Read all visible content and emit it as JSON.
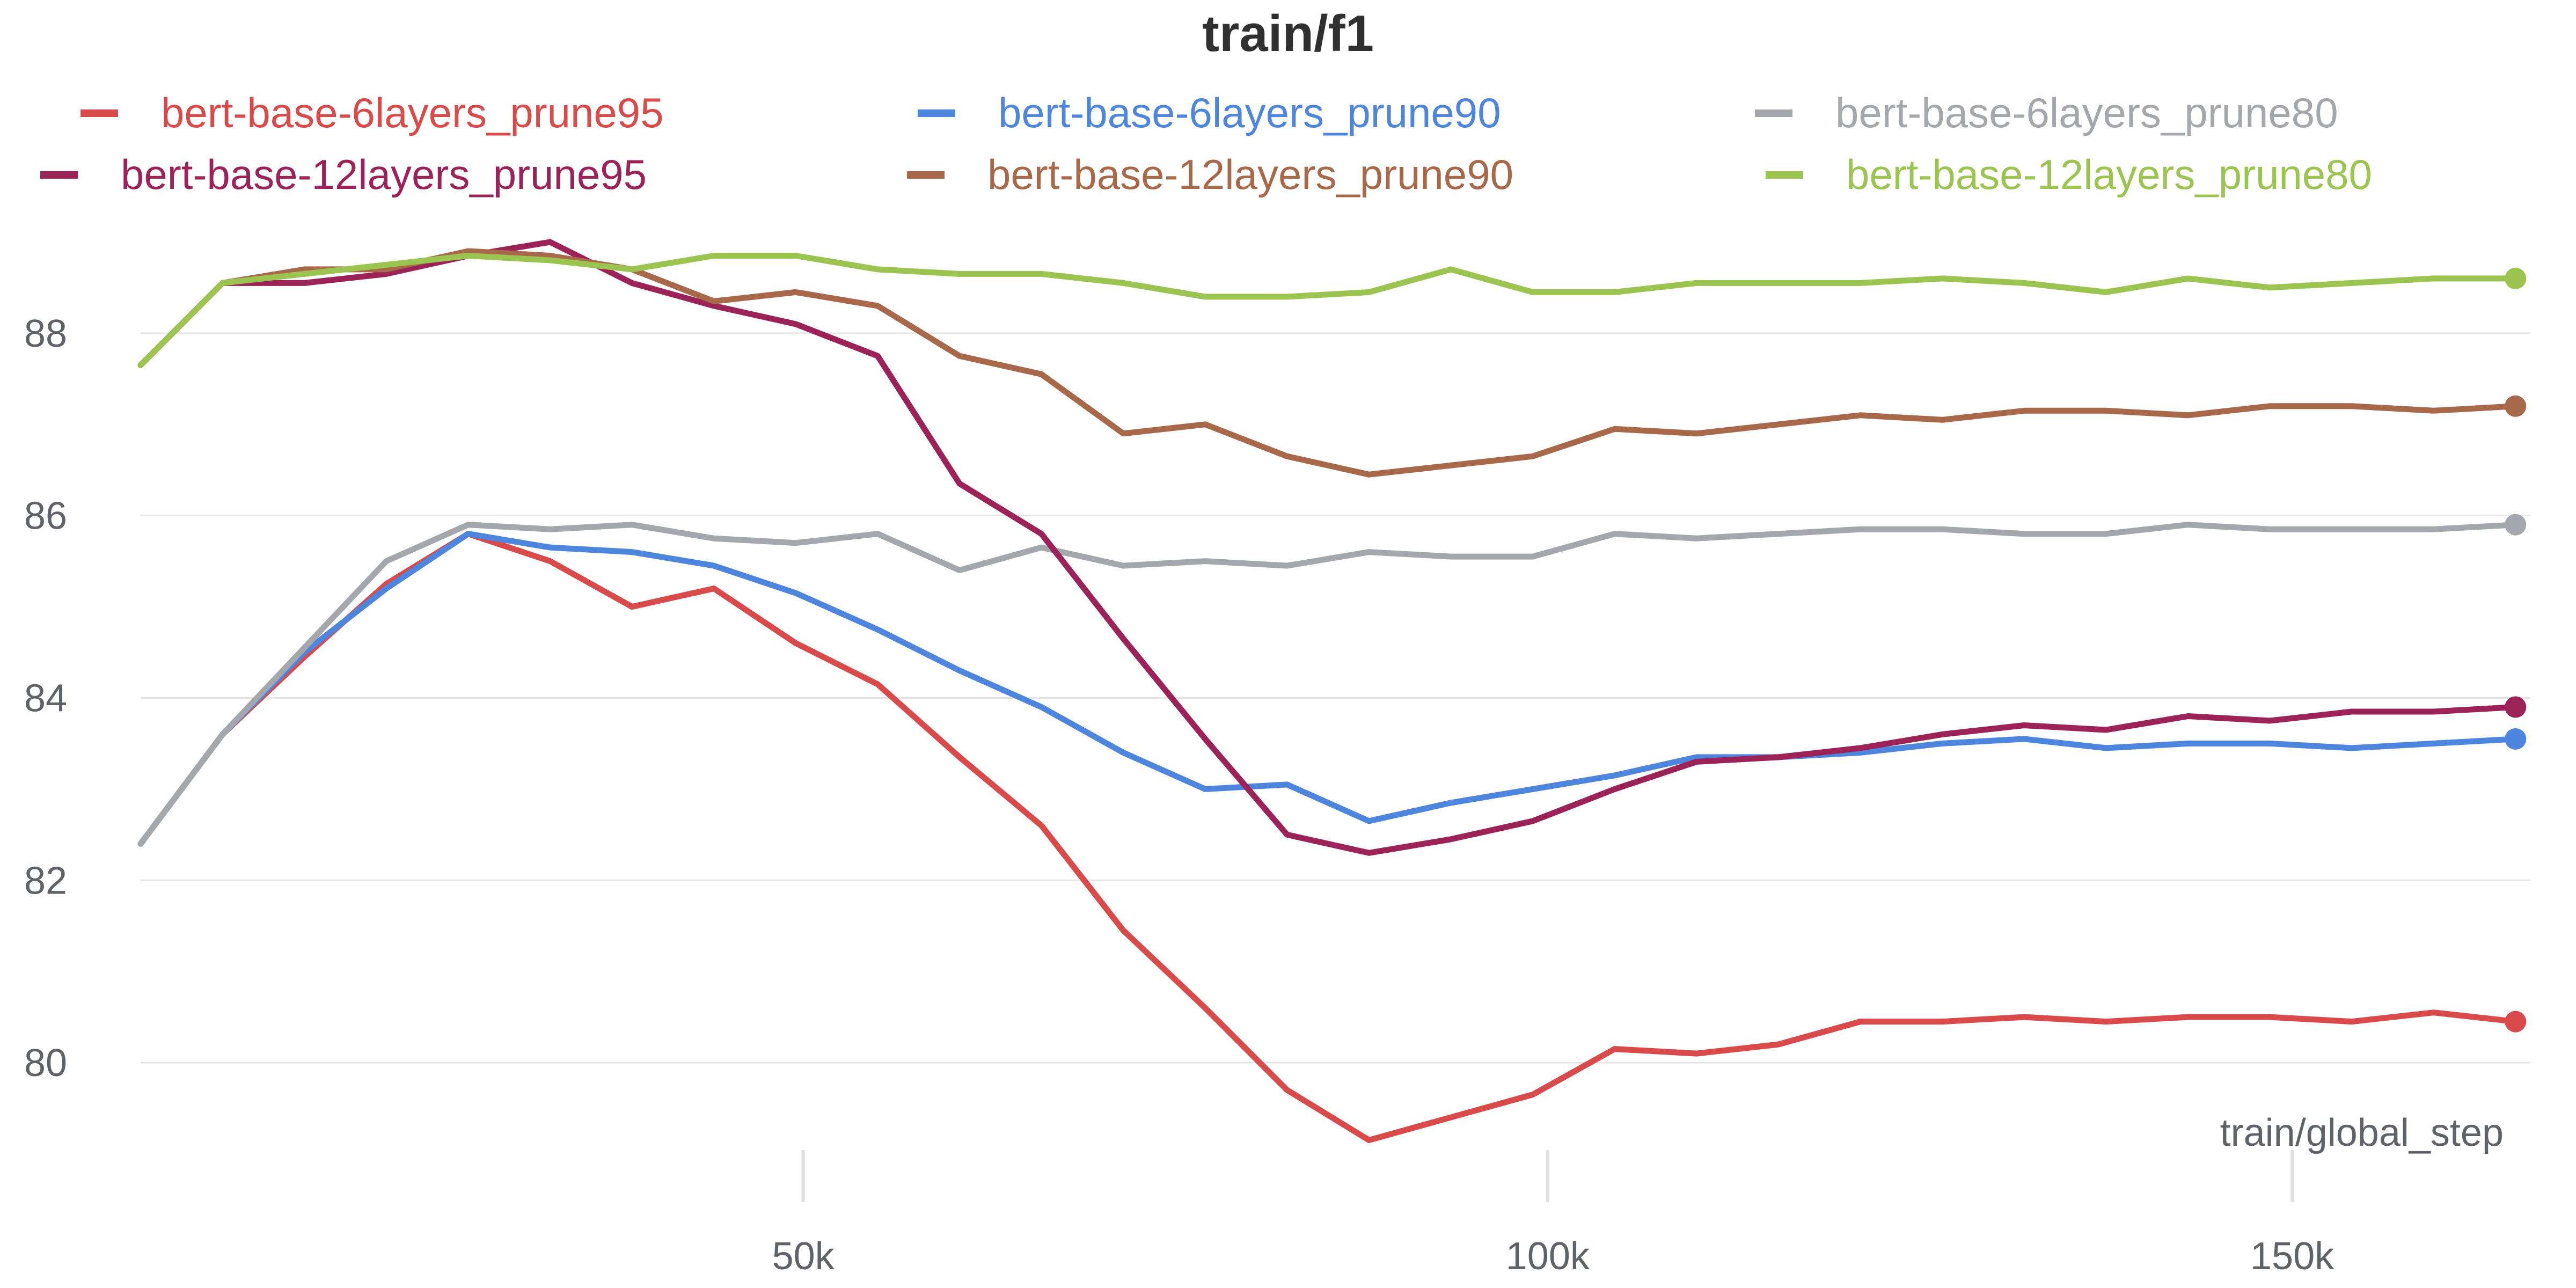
{
  "chart_data": {
    "type": "line",
    "title": "train/f1",
    "xlabel": "train/global_step",
    "ylabel": "",
    "xlim": [
      5500,
      166000
    ],
    "ylim": [
      79,
      89.3
    ],
    "x_ticks": [
      {
        "value": 50000,
        "label": "50k"
      },
      {
        "value": 100000,
        "label": "100k"
      },
      {
        "value": 150000,
        "label": "150k"
      }
    ],
    "y_ticks": [
      {
        "value": 80,
        "label": "80"
      },
      {
        "value": 82,
        "label": "82"
      },
      {
        "value": 84,
        "label": "84"
      },
      {
        "value": 86,
        "label": "86"
      },
      {
        "value": 88,
        "label": "88"
      }
    ],
    "grid": "horizontal",
    "legend_position": "top",
    "x": [
      5500,
      11000,
      16500,
      22000,
      27500,
      33000,
      38500,
      44000,
      49500,
      55000,
      60500,
      66000,
      71500,
      77000,
      82500,
      88000,
      93500,
      99000,
      104500,
      110000,
      115500,
      121000,
      126500,
      132000,
      137500,
      143000,
      148500,
      154000,
      159500,
      165000
    ],
    "series": [
      {
        "name": "bert-base-6layers_prune95",
        "color": "#d94a4a",
        "values": [
          82.4,
          83.6,
          84.45,
          85.25,
          85.8,
          85.5,
          85.0,
          85.2,
          84.6,
          84.15,
          83.35,
          82.6,
          81.45,
          80.6,
          79.7,
          79.15,
          79.4,
          79.65,
          80.15,
          80.1,
          80.2,
          80.45,
          80.45,
          80.5,
          80.45,
          80.5,
          80.5,
          80.45,
          80.55,
          80.45
        ]
      },
      {
        "name": "bert-base-6layers_prune90",
        "color": "#4f86dd",
        "values": [
          82.4,
          83.6,
          84.5,
          85.2,
          85.8,
          85.65,
          85.6,
          85.45,
          85.15,
          84.75,
          84.3,
          83.9,
          83.4,
          83.0,
          83.05,
          82.65,
          82.85,
          83.0,
          83.15,
          83.35,
          83.35,
          83.4,
          83.5,
          83.55,
          83.45,
          83.5,
          83.5,
          83.45,
          83.5,
          83.55
        ]
      },
      {
        "name": "bert-base-6layers_prune80",
        "color": "#a4a8ad",
        "values": [
          82.4,
          83.6,
          84.55,
          85.5,
          85.9,
          85.85,
          85.9,
          85.75,
          85.7,
          85.8,
          85.4,
          85.65,
          85.45,
          85.5,
          85.45,
          85.6,
          85.55,
          85.55,
          85.8,
          85.75,
          85.8,
          85.85,
          85.85,
          85.8,
          85.8,
          85.9,
          85.85,
          85.85,
          85.85,
          85.9
        ]
      },
      {
        "name": "bert-base-12layers_prune95",
        "color": "#9b2358",
        "values": [
          87.65,
          88.55,
          88.55,
          88.65,
          88.85,
          89.0,
          88.55,
          88.3,
          88.1,
          87.75,
          86.35,
          85.8,
          84.65,
          83.55,
          82.5,
          82.3,
          82.45,
          82.65,
          83.0,
          83.3,
          83.35,
          83.45,
          83.6,
          83.7,
          83.65,
          83.8,
          83.75,
          83.85,
          83.85,
          83.9
        ]
      },
      {
        "name": "bert-base-12layers_prune90",
        "color": "#a8694b",
        "values": [
          87.65,
          88.55,
          88.7,
          88.7,
          88.9,
          88.85,
          88.7,
          88.35,
          88.45,
          88.3,
          87.75,
          87.55,
          86.9,
          87.0,
          86.65,
          86.45,
          86.55,
          86.65,
          86.95,
          86.9,
          87.0,
          87.1,
          87.05,
          87.15,
          87.15,
          87.1,
          87.2,
          87.2,
          87.15,
          87.2
        ]
      },
      {
        "name": "bert-base-12layers_prune80",
        "color": "#9bc450",
        "values": [
          87.65,
          88.55,
          88.65,
          88.75,
          88.85,
          88.8,
          88.7,
          88.85,
          88.85,
          88.7,
          88.65,
          88.65,
          88.55,
          88.4,
          88.4,
          88.45,
          88.7,
          88.45,
          88.45,
          88.55,
          88.55,
          88.55,
          88.6,
          88.55,
          88.45,
          88.6,
          88.5,
          88.55,
          88.6,
          88.6
        ]
      }
    ]
  }
}
